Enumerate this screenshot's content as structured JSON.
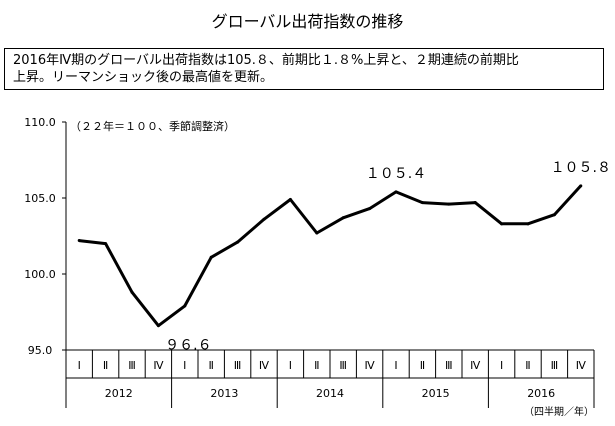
{
  "title": "グローバル出荷指数の推移",
  "summary": {
    "line1": "2016年Ⅳ期のグローバル出荷指数は105.８、前期比１.８%上昇と、２期連続の前期比",
    "line2": "上昇。リーマンショック後の最高値を更新。"
  },
  "chart_data": {
    "type": "line",
    "title": "グローバル出荷指数の推移",
    "note": "（２２年＝１００、季節調整済）",
    "unit_label": "（四半期／年）",
    "y_ticks": [
      "110.0",
      "105.0",
      "100.0",
      "95.0"
    ],
    "ylim": [
      95,
      110
    ],
    "quarters": [
      "Ⅰ",
      "Ⅱ",
      "Ⅲ",
      "Ⅳ",
      "Ⅰ",
      "Ⅱ",
      "Ⅲ",
      "Ⅳ",
      "Ⅰ",
      "Ⅱ",
      "Ⅲ",
      "Ⅳ",
      "Ⅰ",
      "Ⅱ",
      "Ⅲ",
      "Ⅳ",
      "Ⅰ",
      "Ⅱ",
      "Ⅲ",
      "Ⅳ"
    ],
    "years": [
      "2012",
      "2013",
      "2014",
      "2015",
      "2016"
    ],
    "values": [
      102.2,
      102.0,
      98.8,
      96.6,
      97.9,
      101.1,
      102.1,
      103.6,
      104.9,
      102.7,
      103.7,
      104.3,
      105.4,
      104.7,
      104.6,
      104.7,
      103.3,
      103.3,
      103.9,
      105.8
    ],
    "annotations": [
      {
        "index": 3,
        "label": "９６.６"
      },
      {
        "index": 12,
        "label": "１０５.４"
      },
      {
        "index": 19,
        "label": "１０５.８"
      }
    ],
    "grid": false,
    "line_color": "#000000"
  }
}
